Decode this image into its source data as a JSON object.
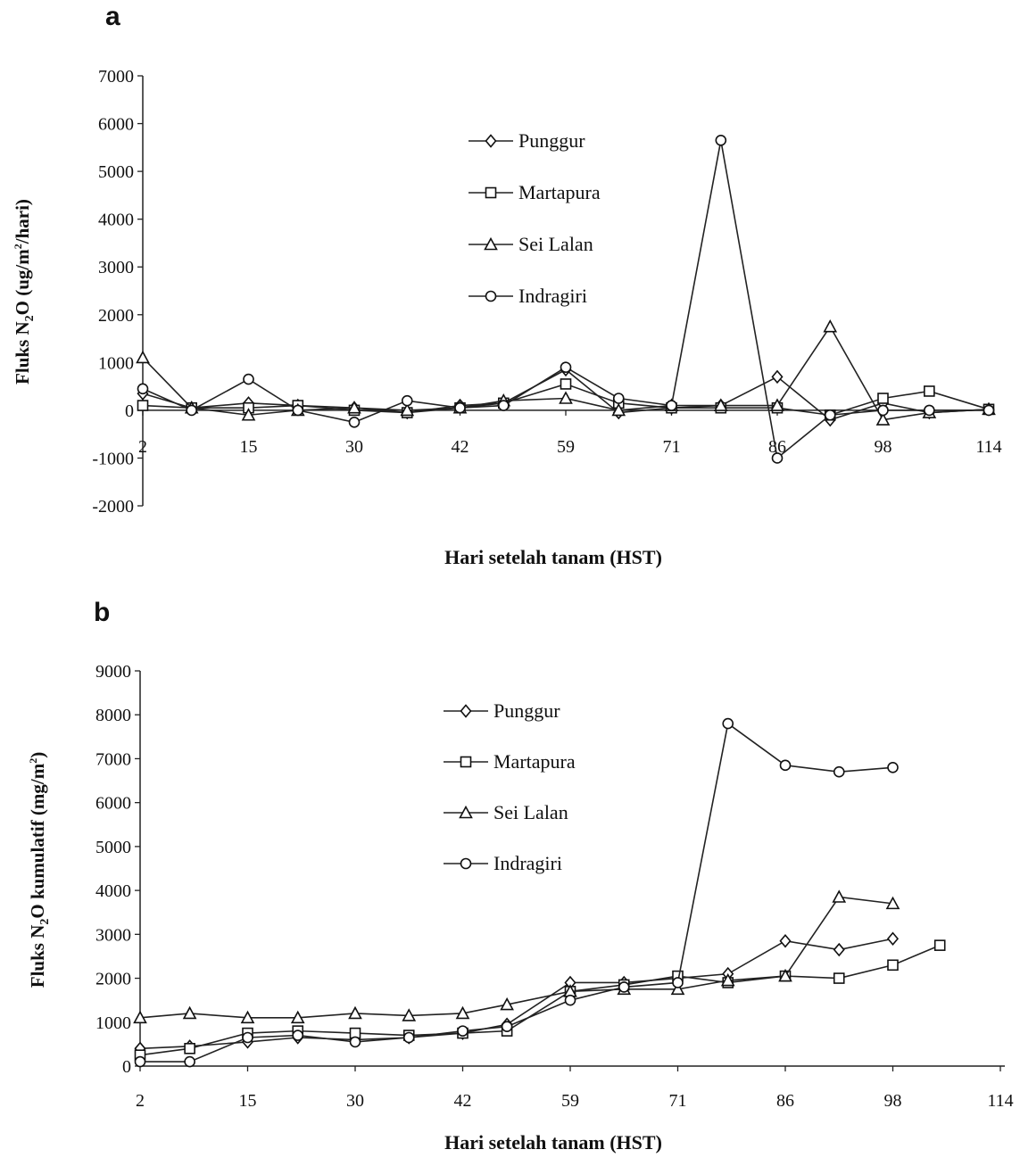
{
  "chart_data": [
    {
      "panel": "a",
      "type": "line",
      "xlabel": "Hari setelah tanam (HST)",
      "ylabel": "Fluks N2O (ug/m2/hari)",
      "ylim": [
        -2000,
        7000
      ],
      "yticks": [
        -2000,
        -1000,
        0,
        1000,
        2000,
        3000,
        4000,
        5000,
        6000,
        7000
      ],
      "xticks": [
        "2",
        "15",
        "30",
        "42",
        "59",
        "71",
        "86",
        "98",
        "114"
      ],
      "legend_position": "top-center",
      "grid": false,
      "series": [
        {
          "name": "Punggur",
          "marker": "diamond",
          "points": [
            [
              2,
              350
            ],
            [
              8,
              50
            ],
            [
              15,
              150
            ],
            [
              22,
              100
            ],
            [
              30,
              50
            ],
            [
              36,
              -50
            ],
            [
              42,
              100
            ],
            [
              49,
              150
            ],
            [
              59,
              850
            ],
            [
              65,
              -50
            ],
            [
              71,
              50
            ],
            [
              78,
              100
            ],
            [
              86,
              700
            ],
            [
              92,
              -200
            ],
            [
              98,
              150
            ],
            [
              105,
              -50
            ],
            [
              114,
              20
            ]
          ]
        },
        {
          "name": "Martapura",
          "marker": "square",
          "points": [
            [
              2,
              100
            ],
            [
              8,
              50
            ],
            [
              15,
              50
            ],
            [
              22,
              100
            ],
            [
              30,
              0
            ],
            [
              36,
              -50
            ],
            [
              42,
              50
            ],
            [
              49,
              150
            ],
            [
              59,
              550
            ],
            [
              65,
              150
            ],
            [
              71,
              50
            ],
            [
              78,
              50
            ],
            [
              86,
              50
            ],
            [
              92,
              -100
            ],
            [
              98,
              250
            ],
            [
              105,
              400
            ],
            [
              114,
              20
            ]
          ]
        },
        {
          "name": "Sei Lalan",
          "marker": "triangle",
          "points": [
            [
              2,
              1100
            ],
            [
              8,
              50
            ],
            [
              15,
              -100
            ],
            [
              22,
              0
            ],
            [
              30,
              50
            ],
            [
              36,
              0
            ],
            [
              42,
              50
            ],
            [
              49,
              200
            ],
            [
              59,
              250
            ],
            [
              65,
              0
            ],
            [
              71,
              100
            ],
            [
              78,
              100
            ],
            [
              86,
              100
            ],
            [
              92,
              1750
            ],
            [
              98,
              -200
            ],
            [
              105,
              -50
            ],
            [
              114,
              20
            ]
          ]
        },
        {
          "name": "Indragiri",
          "marker": "circle",
          "points": [
            [
              2,
              450
            ],
            [
              8,
              0
            ],
            [
              15,
              650
            ],
            [
              22,
              0
            ],
            [
              30,
              -250
            ],
            [
              36,
              200
            ],
            [
              42,
              50
            ],
            [
              49,
              100
            ],
            [
              59,
              900
            ],
            [
              65,
              250
            ],
            [
              71,
              100
            ],
            [
              78,
              5650
            ],
            [
              86,
              -1000
            ],
            [
              92,
              -100
            ],
            [
              98,
              0
            ],
            [
              105,
              0
            ],
            [
              114,
              0
            ]
          ]
        }
      ]
    },
    {
      "panel": "b",
      "type": "line",
      "xlabel": "Hari setelah tanam (HST)",
      "ylabel": "Fluks N2O kumulatif (mg/m2)",
      "ylim": [
        0,
        9000
      ],
      "yticks": [
        0,
        1000,
        2000,
        3000,
        4000,
        5000,
        6000,
        7000,
        8000,
        9000
      ],
      "xticks": [
        "2",
        "15",
        "30",
        "42",
        "59",
        "71",
        "86",
        "98",
        "114"
      ],
      "legend_position": "top-center",
      "grid": false,
      "series": [
        {
          "name": "Punggur",
          "marker": "diamond",
          "points": [
            [
              2,
              400
            ],
            [
              8,
              450
            ],
            [
              15,
              550
            ],
            [
              22,
              650
            ],
            [
              30,
              600
            ],
            [
              36,
              650
            ],
            [
              42,
              750
            ],
            [
              49,
              950
            ],
            [
              59,
              1900
            ],
            [
              65,
              1900
            ],
            [
              71,
              2000
            ],
            [
              78,
              2100
            ],
            [
              86,
              2850
            ],
            [
              92,
              2650
            ],
            [
              98,
              2900
            ]
          ]
        },
        {
          "name": "Martapura",
          "marker": "square",
          "points": [
            [
              2,
              250
            ],
            [
              8,
              400
            ],
            [
              15,
              750
            ],
            [
              22,
              800
            ],
            [
              30,
              750
            ],
            [
              36,
              700
            ],
            [
              42,
              750
            ],
            [
              49,
              800
            ],
            [
              59,
              1700
            ],
            [
              65,
              1850
            ],
            [
              71,
              2050
            ],
            [
              78,
              1900
            ],
            [
              86,
              2050
            ],
            [
              92,
              2000
            ],
            [
              98,
              2300
            ],
            [
              105,
              2750
            ]
          ]
        },
        {
          "name": "Sei Lalan",
          "marker": "triangle",
          "points": [
            [
              2,
              1100
            ],
            [
              8,
              1200
            ],
            [
              15,
              1100
            ],
            [
              22,
              1100
            ],
            [
              30,
              1200
            ],
            [
              36,
              1150
            ],
            [
              42,
              1200
            ],
            [
              49,
              1400
            ],
            [
              59,
              1700
            ],
            [
              65,
              1750
            ],
            [
              71,
              1750
            ],
            [
              78,
              1950
            ],
            [
              86,
              2050
            ],
            [
              92,
              3850
            ],
            [
              98,
              3700
            ]
          ]
        },
        {
          "name": "Indragiri",
          "marker": "circle",
          "points": [
            [
              2,
              100
            ],
            [
              8,
              100
            ],
            [
              15,
              650
            ],
            [
              22,
              700
            ],
            [
              30,
              550
            ],
            [
              36,
              650
            ],
            [
              42,
              800
            ],
            [
              49,
              900
            ],
            [
              59,
              1500
            ],
            [
              65,
              1800
            ],
            [
              71,
              1900
            ],
            [
              78,
              7800
            ],
            [
              86,
              6850
            ],
            [
              92,
              6700
            ],
            [
              98,
              6800
            ]
          ]
        }
      ]
    }
  ]
}
